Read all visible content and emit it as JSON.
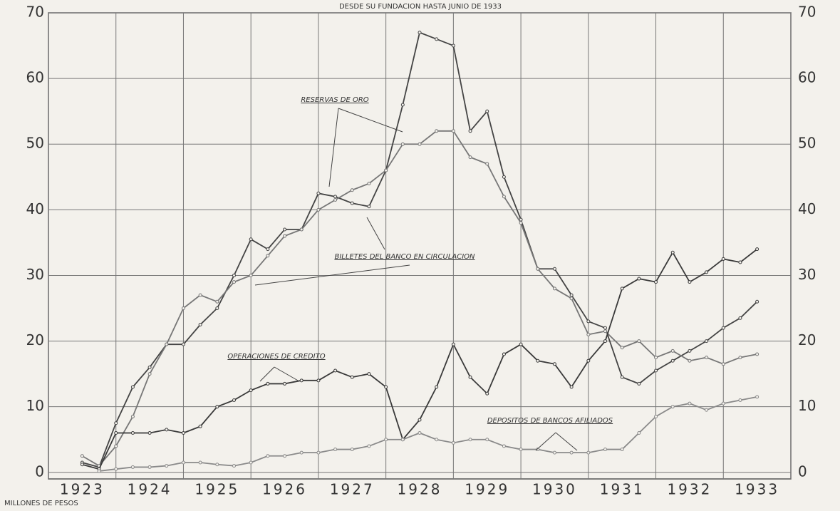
{
  "chart_data": {
    "type": "line",
    "title": "DESDE SU FUNDACION HASTA JUNIO DE 1933",
    "y_label": "MILLONES DE PESOS",
    "categories": [
      "1923",
      "1924",
      "1925",
      "1926",
      "1927",
      "1928",
      "1929",
      "1930",
      "1931",
      "1932",
      "1933"
    ],
    "xlim": [
      1923,
      1934
    ],
    "xticks": [
      1923,
      1924,
      1925,
      1926,
      1927,
      1928,
      1929,
      1930,
      1931,
      1932,
      1933,
      1934
    ],
    "ylim": [
      -1,
      70
    ],
    "yticks": [
      0,
      10,
      20,
      30,
      40,
      50,
      60,
      70
    ],
    "grid": true,
    "x": [
      1923.5,
      1923.75,
      1924,
      1924.25,
      1924.5,
      1924.75,
      1925,
      1925.25,
      1925.5,
      1925.75,
      1926,
      1926.25,
      1926.5,
      1926.75,
      1927,
      1927.25,
      1927.5,
      1927.75,
      1928,
      1928.25,
      1928.5,
      1928.75,
      1929,
      1929.25,
      1929.5,
      1929.75,
      1930,
      1930.25,
      1930.5,
      1930.75,
      1931,
      1931.25,
      1931.5,
      1931.75,
      1932,
      1932.25,
      1932.5,
      1932.75,
      1933,
      1933.25,
      1933.5
    ],
    "series": [
      {
        "name": "RESERVAS DE ORO",
        "color": "#444444",
        "values": [
          1.5,
          0.8,
          7.5,
          13,
          16,
          19.5,
          19.5,
          22.5,
          25,
          30,
          35.5,
          34,
          37,
          37,
          42.5,
          42,
          41,
          40.5,
          46,
          56,
          67,
          66,
          65,
          52,
          55,
          45,
          38.5,
          31,
          31,
          27,
          23,
          22,
          14.5,
          13.5,
          15.5,
          17,
          18.5,
          20,
          22,
          23.5,
          26
        ]
      },
      {
        "name": "BILLETES DEL BANCO EN CIRCULACION",
        "color": "#777777",
        "values": [
          2.5,
          1,
          4,
          8.5,
          15,
          19.5,
          25,
          27,
          26,
          29,
          30,
          33,
          36,
          37,
          40,
          41.5,
          43,
          44,
          46,
          50,
          50,
          52,
          52,
          48,
          47,
          42,
          38,
          31,
          28,
          26.5,
          21,
          21.5,
          19,
          20,
          17.5,
          18.5,
          17,
          17.5,
          16.5,
          17.5,
          18
        ]
      },
      {
        "name": "OPERACIONES DE CREDITO",
        "color": "#3a3a3a",
        "values": [
          1.2,
          0.5,
          6,
          6,
          6,
          6.5,
          6,
          7,
          10,
          11,
          12.5,
          13.5,
          13.5,
          14,
          14,
          15.5,
          14.5,
          15,
          13,
          5,
          8,
          13,
          19.5,
          14.5,
          12,
          18,
          19.5,
          17,
          16.5,
          13,
          17,
          20,
          28,
          29.5,
          29,
          33.5,
          29,
          30.5,
          32.5,
          32,
          34
        ]
      },
      {
        "name": "DEPOSITOS DE BANCOS AFILIADOS",
        "color": "#8a8a8a",
        "values": [
          null,
          0.2,
          0.5,
          0.8,
          0.8,
          1,
          1.5,
          1.5,
          1.2,
          1,
          1.5,
          2.5,
          2.5,
          3,
          3,
          3.5,
          3.5,
          4,
          5,
          5,
          6,
          5,
          4.5,
          5,
          5,
          4,
          3.5,
          3.5,
          3,
          3,
          3,
          3.5,
          3.5,
          6,
          8.5,
          10,
          10.5,
          9.5,
          10.5,
          11,
          11.5
        ]
      }
    ]
  }
}
